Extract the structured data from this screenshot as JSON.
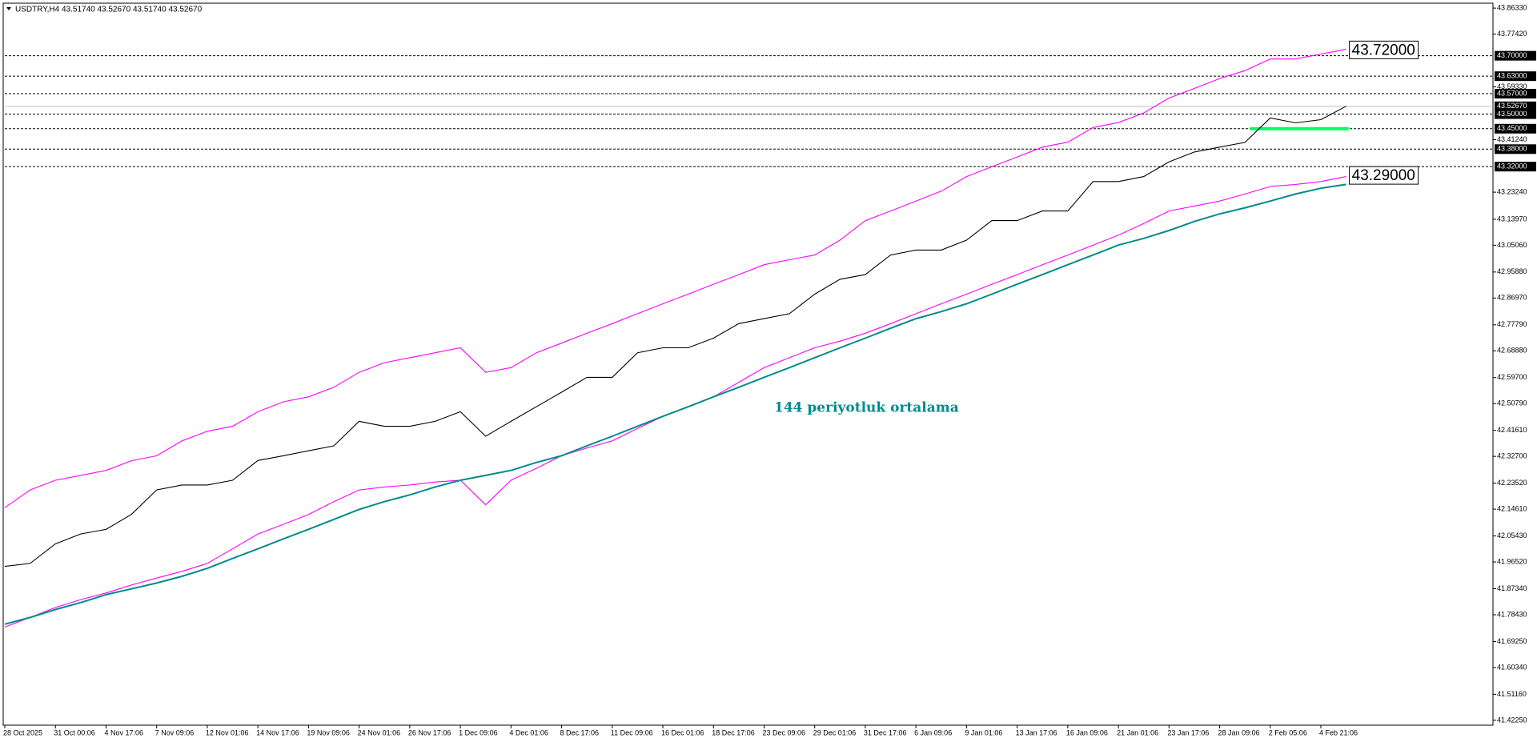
{
  "chart_data": {
    "type": "line",
    "title": "USDTRY,H4  43.51740 43.52670 43.51740 43.52670",
    "x": [
      0,
      0.5,
      1,
      1.5,
      2,
      2.5,
      3,
      3.5,
      4,
      4.5,
      5,
      5.5,
      6,
      6.5,
      7,
      7.5,
      8,
      8.5,
      9,
      9.5,
      10,
      10.5,
      11,
      11.5,
      12,
      12.5,
      13,
      13.5,
      14,
      14.5,
      15,
      15.5,
      16,
      16.5,
      17,
      17.5,
      18,
      18.5,
      19,
      19.5,
      20,
      20.5,
      21,
      21.5,
      22,
      22.5,
      23,
      23.5,
      24,
      24.5,
      25,
      25.5,
      26,
      26.5
    ],
    "series": [
      {
        "color": "#ff00ff",
        "values": [
          42.151,
          42.212,
          42.245,
          42.262,
          42.279,
          42.312,
          42.329,
          42.38,
          42.413,
          42.43,
          42.48,
          42.514,
          42.531,
          42.564,
          42.615,
          42.648,
          42.665,
          42.682,
          42.699,
          42.615,
          42.631,
          42.682,
          42.715,
          42.749,
          42.782,
          42.816,
          42.85,
          42.883,
          42.917,
          42.95,
          42.984,
          43.001,
          43.017,
          43.068,
          43.135,
          43.168,
          43.202,
          43.236,
          43.286,
          43.32,
          43.353,
          43.387,
          43.404,
          43.454,
          43.471,
          43.504,
          43.555,
          43.588,
          43.622,
          43.649,
          43.689,
          43.689,
          43.706,
          43.722
        ]
      },
      {
        "color": "#ff00ff",
        "values": [
          41.742,
          41.775,
          41.809,
          41.836,
          41.859,
          41.886,
          41.91,
          41.933,
          41.96,
          42.01,
          42.061,
          42.094,
          42.128,
          42.172,
          42.212,
          42.222,
          42.229,
          42.239,
          42.245,
          42.161,
          42.245,
          42.286,
          42.329,
          42.356,
          42.38,
          42.423,
          42.464,
          42.497,
          42.531,
          42.581,
          42.631,
          42.665,
          42.699,
          42.722,
          42.749,
          42.782,
          42.816,
          42.85,
          42.883,
          42.917,
          42.95,
          42.984,
          43.017,
          43.051,
          43.085,
          43.125,
          43.168,
          43.185,
          43.202,
          43.226,
          43.252,
          43.259,
          43.269,
          43.286
        ]
      },
      {
        "name": "144 periyotluk ortalama",
        "color": "#008b8b",
        "values": [
          41.752,
          41.775,
          41.802,
          41.826,
          41.853,
          41.873,
          41.893,
          41.916,
          41.943,
          41.977,
          42.01,
          42.044,
          42.077,
          42.111,
          42.145,
          42.172,
          42.195,
          42.222,
          42.245,
          42.262,
          42.279,
          42.306,
          42.329,
          42.363,
          42.396,
          42.43,
          42.464,
          42.497,
          42.531,
          42.564,
          42.598,
          42.631,
          42.665,
          42.699,
          42.732,
          42.766,
          42.799,
          42.823,
          42.85,
          42.883,
          42.917,
          42.95,
          42.984,
          43.017,
          43.051,
          43.074,
          43.101,
          43.132,
          43.158,
          43.179,
          43.202,
          43.226,
          43.246,
          43.259
        ]
      },
      {
        "color": "#000000",
        "values": [
          41.95,
          41.96,
          42.027,
          42.061,
          42.077,
          42.128,
          42.212,
          42.229,
          42.229,
          42.245,
          42.313,
          42.329,
          42.346,
          42.363,
          42.447,
          42.43,
          42.43,
          42.447,
          42.48,
          42.396,
          42.447,
          42.497,
          42.547,
          42.598,
          42.598,
          42.682,
          42.699,
          42.699,
          42.732,
          42.782,
          42.799,
          42.816,
          42.883,
          42.934,
          42.95,
          43.017,
          43.034,
          43.034,
          43.068,
          43.135,
          43.135,
          43.168,
          43.168,
          43.269,
          43.269,
          43.286,
          43.336,
          43.37,
          43.387,
          43.403,
          43.487,
          43.47,
          43.481,
          43.527
        ]
      }
    ],
    "xlim": [
      0,
      29.4
    ],
    "ylim": [
      41.4057,
      43.8801
    ],
    "xticks": [
      {
        "value": 0,
        "label": "28 Oct 2025"
      },
      {
        "value": 1,
        "label": "31 Oct 00:06"
      },
      {
        "value": 2,
        "label": "4 Nov 17:06"
      },
      {
        "value": 3,
        "label": "7 Nov 09:06"
      },
      {
        "value": 4,
        "label": "12 Nov 01:06"
      },
      {
        "value": 5,
        "label": "14 Nov 17:06"
      },
      {
        "value": 6,
        "label": "19 Nov 09:06"
      },
      {
        "value": 7,
        "label": "24 Nov 01:06"
      },
      {
        "value": 8,
        "label": "26 Nov 17:06"
      },
      {
        "value": 9,
        "label": "1 Dec 09:06"
      },
      {
        "value": 10,
        "label": "4 Dec 01:06"
      },
      {
        "value": 11,
        "label": "8 Dec 17:06"
      },
      {
        "value": 12,
        "label": "11 Dec 09:06"
      },
      {
        "value": 13,
        "label": "16 Dec 01:06"
      },
      {
        "value": 14,
        "label": "18 Dec 17:06"
      },
      {
        "value": 15,
        "label": "23 Dec 09:06"
      },
      {
        "value": 16,
        "label": "29 Dec 01:06"
      },
      {
        "value": 17,
        "label": "31 Dec 17:06"
      },
      {
        "value": 18,
        "label": "6 Jan 09:06"
      },
      {
        "value": 19,
        "label": "9 Jan 01:06"
      },
      {
        "value": 20,
        "label": "13 Jan 17:06"
      },
      {
        "value": 21,
        "label": "16 Jan 09:06"
      },
      {
        "value": 22,
        "label": "21 Jan 01:06"
      },
      {
        "value": 23,
        "label": "23 Jan 17:06"
      },
      {
        "value": 24,
        "label": "28 Jan 09:06"
      },
      {
        "value": 25,
        "label": "2 Feb 05:06"
      },
      {
        "value": 26,
        "label": "4 Feb 21:06"
      }
    ],
    "yticks": [
      {
        "value": 43.8633,
        "label": "43.86330"
      },
      {
        "value": 43.7742,
        "label": "43.77420"
      },
      {
        "value": 43.5933,
        "label": "43.59330"
      },
      {
        "value": 43.4124,
        "label": "43.41240"
      },
      {
        "value": 43.2324,
        "label": "43.23240"
      },
      {
        "value": 43.1397,
        "label": "43.13970"
      },
      {
        "value": 43.0506,
        "label": "43.05060"
      },
      {
        "value": 42.9588,
        "label": "42.95880"
      },
      {
        "value": 42.8697,
        "label": "42.86970"
      },
      {
        "value": 42.7779,
        "label": "42.77790"
      },
      {
        "value": 42.6888,
        "label": "42.68880"
      },
      {
        "value": 42.597,
        "label": "42.59700"
      },
      {
        "value": 42.5079,
        "label": "42.50790"
      },
      {
        "value": 42.4161,
        "label": "42.41610"
      },
      {
        "value": 42.327,
        "label": "42.32700"
      },
      {
        "value": 42.2352,
        "label": "42.23520"
      },
      {
        "value": 42.1461,
        "label": "42.14610"
      },
      {
        "value": 42.0543,
        "label": "42.05430"
      },
      {
        "value": 41.9652,
        "label": "41.96520"
      },
      {
        "value": 41.8734,
        "label": "41.87340"
      },
      {
        "value": 41.7843,
        "label": "41.78430"
      },
      {
        "value": 41.6925,
        "label": "41.69250"
      },
      {
        "value": 41.6034,
        "label": "41.60340"
      },
      {
        "value": 41.5116,
        "label": "41.51160"
      },
      {
        "value": 41.4225,
        "label": "41.42250"
      }
    ],
    "levels": [
      {
        "value": 43.7,
        "label": "43.70000"
      },
      {
        "value": 43.63,
        "label": "43.63000"
      },
      {
        "value": 43.57,
        "label": "43.57000"
      },
      {
        "value": 43.5,
        "label": "43.50000"
      },
      {
        "value": 43.45,
        "label": "43.45000"
      },
      {
        "value": 43.38,
        "label": "43.38000"
      },
      {
        "value": 43.32,
        "label": "43.32000"
      }
    ],
    "current_price": {
      "value": 43.5267,
      "label": "43.52670",
      "color": "#c0c0c0"
    },
    "highlight": {
      "value": 43.45,
      "x": [
        24.6,
        26.55
      ],
      "color": "#00ff66"
    },
    "annotations": [
      {
        "value": 43.72,
        "label": "43.72000"
      },
      {
        "value": 43.29,
        "label": "43.29000"
      }
    ]
  }
}
